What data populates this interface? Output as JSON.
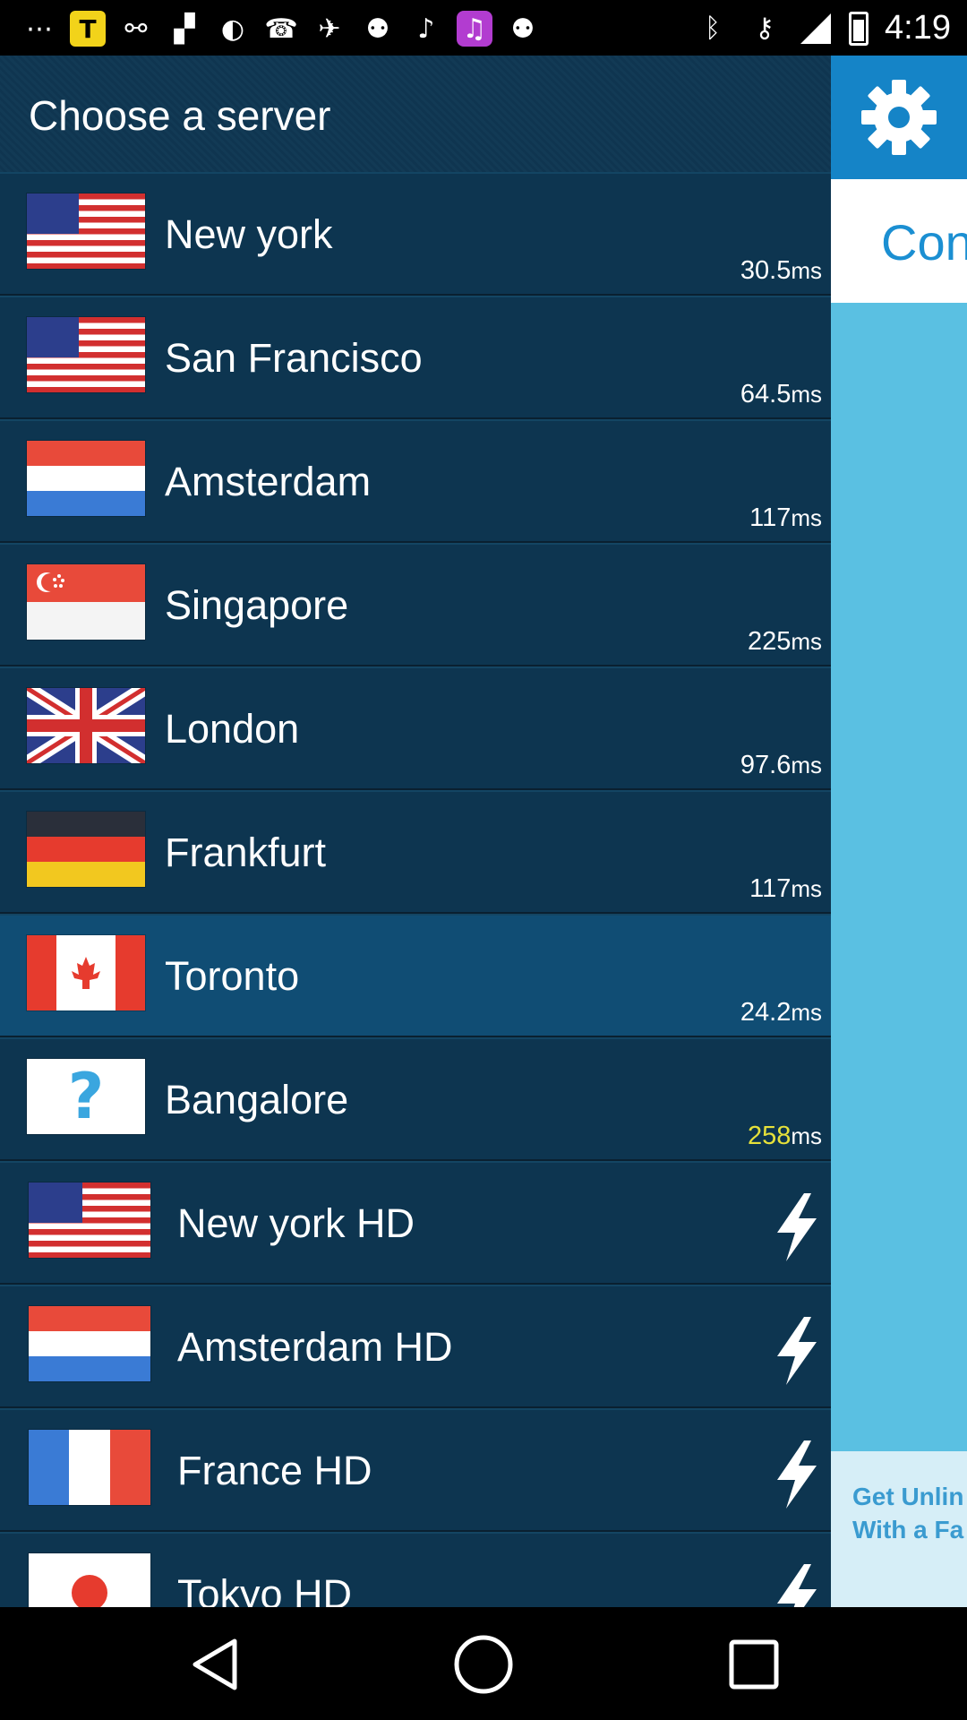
{
  "status_bar": {
    "time": "4:19",
    "left_icons": [
      "dots-icon",
      "t-app-icon",
      "usb-icon",
      "flipboard-icon",
      "moon-icon",
      "phone-icon",
      "plane-icon",
      "runner-icon",
      "guitar-icon",
      "music-icon",
      "runner-icon-2",
      "bluetooth-icon",
      "key-icon"
    ],
    "t_label": "T"
  },
  "header": {
    "title": "Choose a server"
  },
  "servers": [
    {
      "city": "New york",
      "ping": "30.5",
      "unit": "ms",
      "flag": "us"
    },
    {
      "city": "San Francisco",
      "ping": "64.5",
      "unit": "ms",
      "flag": "us"
    },
    {
      "city": "Amsterdam",
      "ping": "117",
      "unit": "ms",
      "flag": "nl"
    },
    {
      "city": "Singapore",
      "ping": "225",
      "unit": "ms",
      "flag": "sg"
    },
    {
      "city": "London",
      "ping": "97.6",
      "unit": "ms",
      "flag": "uk"
    },
    {
      "city": "Frankfurt",
      "ping": "117",
      "unit": "ms",
      "flag": "de"
    },
    {
      "city": "Toronto",
      "ping": "24.2",
      "unit": "ms",
      "flag": "ca",
      "selected": true
    },
    {
      "city": "Bangalore",
      "ping": "258",
      "unit": "ms",
      "flag": "unknown",
      "unknown_symbol": "?"
    }
  ],
  "hd_servers": [
    {
      "city": "New york HD",
      "flag": "us",
      "icon": "lightning-icon"
    },
    {
      "city": "Amsterdam HD",
      "flag": "nl",
      "icon": "lightning-icon"
    },
    {
      "city": "France HD",
      "flag": "fr",
      "icon": "lightning-icon"
    },
    {
      "city": "Tokyo HD",
      "flag": "jp",
      "icon": "lightning-icon"
    }
  ],
  "side_panel": {
    "settings_icon": "gear-icon",
    "connect_label": "Con",
    "promo_line1": "Get Unlin",
    "promo_line2": "With a Fa"
  },
  "colors": {
    "drawer_bg": "#0d3550",
    "selected_row": "#104d74",
    "side_panel": "#5ac0e2",
    "gear_box": "#1584c7",
    "warn_ping": "#e6e13a"
  },
  "nav_bar": {
    "icons": [
      "back-icon",
      "home-icon",
      "recents-icon"
    ]
  }
}
